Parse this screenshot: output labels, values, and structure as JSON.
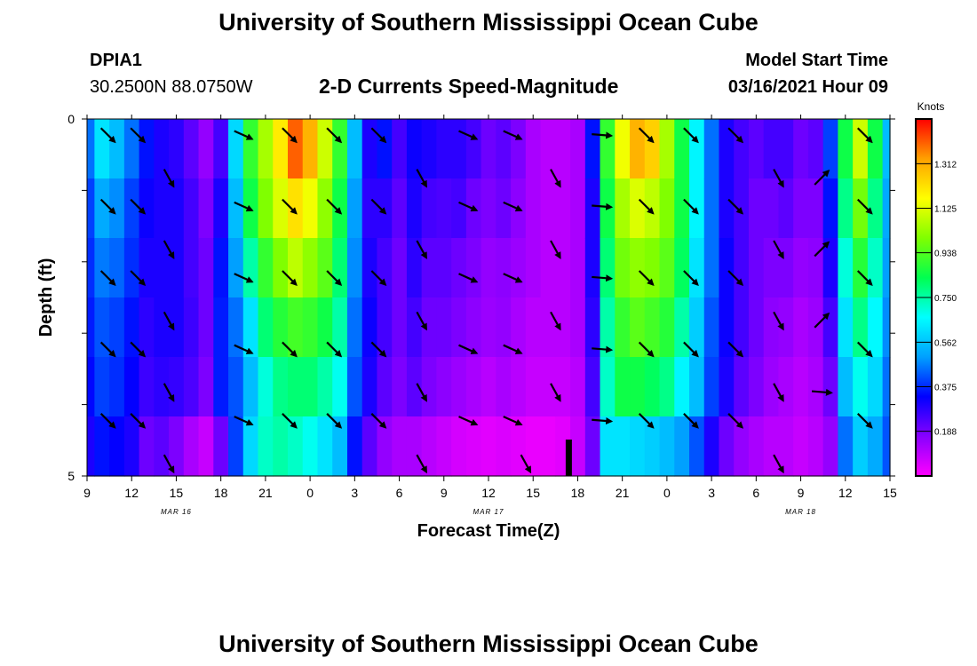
{
  "header": {
    "title": "University of Southern Mississippi Ocean Cube",
    "station_id": "DPIA1",
    "coordinates": "30.2500N 88.0750W",
    "chart_title": "2-D Currents Speed-Magnitude",
    "model_start_label": "Model Start Time",
    "model_start_value": "03/16/2021 Hour 09"
  },
  "footer": {
    "title": "University of Southern Mississippi Ocean Cube"
  },
  "chart_data": {
    "type": "heatmap",
    "title": "2-D Currents Speed-Magnitude",
    "xlabel": "Forecast Time(Z)",
    "ylabel": "Depth (ft)",
    "x_tick_labels": [
      "9",
      "12",
      "15",
      "18",
      "21",
      "0",
      "3",
      "6",
      "9",
      "12",
      "15",
      "18",
      "21",
      "0",
      "3",
      "6",
      "9",
      "12",
      "15"
    ],
    "x_hours": [
      9,
      12,
      15,
      18,
      21,
      24,
      27,
      30,
      33,
      36,
      39,
      42,
      45,
      48,
      51,
      54,
      57,
      60,
      63
    ],
    "date_labels": [
      {
        "label": "MAR 16",
        "hour": 15
      },
      {
        "label": "MAR 17",
        "hour": 36
      },
      {
        "label": "MAR 18",
        "hour": 57
      }
    ],
    "xlim": [
      9,
      63
    ],
    "ylim": [
      0,
      5
    ],
    "y_tick_labels": [
      "0",
      "5"
    ],
    "y_minor_ticks": [
      1,
      2,
      3,
      4
    ],
    "colorbar": {
      "unit": "Knots",
      "ticks": [
        1.312,
        1.125,
        0.938,
        0.75,
        0.562,
        0.375,
        0.188
      ],
      "tick_labels": [
        "1.312",
        "1.125",
        "0.938",
        "0.750",
        "0.562",
        "0.375",
        "0.188"
      ],
      "range": [
        0.0,
        1.5
      ],
      "gradient": [
        "#ff00ff",
        "#8800ff",
        "#0000ff",
        "#00a0ff",
        "#00ffff",
        "#00ff50",
        "#80ff00",
        "#ffff00",
        "#ffa000",
        "#ff0000"
      ]
    },
    "speed_columns": [
      {
        "hour": 9,
        "values": [
          0.45,
          0.4,
          0.38,
          0.36,
          0.34,
          0.3
        ]
      },
      {
        "hour": 10,
        "values": [
          0.62,
          0.52,
          0.46,
          0.42,
          0.4,
          0.35
        ]
      },
      {
        "hour": 11,
        "values": [
          0.55,
          0.48,
          0.44,
          0.4,
          0.38,
          0.33
        ]
      },
      {
        "hour": 12,
        "values": [
          0.45,
          0.4,
          0.38,
          0.35,
          0.33,
          0.3
        ]
      },
      {
        "hour": 13,
        "values": [
          0.35,
          0.32,
          0.3,
          0.28,
          0.26,
          0.2
        ]
      },
      {
        "hour": 14,
        "values": [
          0.3,
          0.3,
          0.3,
          0.3,
          0.28,
          0.22
        ]
      },
      {
        "hour": 15,
        "values": [
          0.28,
          0.3,
          0.3,
          0.3,
          0.27,
          0.18
        ]
      },
      {
        "hour": 16,
        "values": [
          0.22,
          0.25,
          0.25,
          0.26,
          0.24,
          0.12
        ]
      },
      {
        "hour": 17,
        "values": [
          0.15,
          0.18,
          0.2,
          0.2,
          0.18,
          0.08
        ]
      },
      {
        "hour": 18,
        "values": [
          0.25,
          0.3,
          0.35,
          0.36,
          0.36,
          0.2
        ]
      },
      {
        "hour": 19,
        "values": [
          0.6,
          0.55,
          0.5,
          0.45,
          0.42,
          0.4
        ]
      },
      {
        "hour": 20,
        "values": [
          0.9,
          0.85,
          0.75,
          0.62,
          0.55,
          0.6
        ]
      },
      {
        "hour": 21,
        "values": [
          1.05,
          1.0,
          0.9,
          0.8,
          0.7,
          0.72
        ]
      },
      {
        "hour": 22,
        "values": [
          1.2,
          1.12,
          1.0,
          0.88,
          0.78,
          0.75
        ]
      },
      {
        "hour": 23,
        "values": [
          1.4,
          1.22,
          1.08,
          0.92,
          0.8,
          0.72
        ]
      },
      {
        "hour": 24,
        "values": [
          1.3,
          1.15,
          1.02,
          0.9,
          0.8,
          0.68
        ]
      },
      {
        "hour": 25,
        "values": [
          1.1,
          1.02,
          0.95,
          0.85,
          0.75,
          0.62
        ]
      },
      {
        "hour": 26,
        "values": [
          0.9,
          0.85,
          0.8,
          0.75,
          0.68,
          0.55
        ]
      },
      {
        "hour": 27,
        "values": [
          0.55,
          0.5,
          0.48,
          0.45,
          0.42,
          0.35
        ]
      },
      {
        "hour": 28,
        "values": [
          0.3,
          0.28,
          0.3,
          0.32,
          0.3,
          0.22
        ]
      },
      {
        "hour": 29,
        "values": [
          0.35,
          0.28,
          0.25,
          0.25,
          0.22,
          0.15
        ]
      },
      {
        "hour": 30,
        "values": [
          0.25,
          0.22,
          0.2,
          0.2,
          0.18,
          0.12
        ]
      },
      {
        "hour": 31,
        "values": [
          0.32,
          0.3,
          0.28,
          0.25,
          0.22,
          0.12
        ]
      },
      {
        "hour": 32,
        "values": [
          0.3,
          0.25,
          0.22,
          0.2,
          0.18,
          0.1
        ]
      },
      {
        "hour": 33,
        "values": [
          0.28,
          0.24,
          0.22,
          0.2,
          0.16,
          0.08
        ]
      },
      {
        "hour": 34,
        "values": [
          0.28,
          0.25,
          0.2,
          0.18,
          0.14,
          0.06
        ]
      },
      {
        "hour": 35,
        "values": [
          0.25,
          0.2,
          0.18,
          0.16,
          0.12,
          0.05
        ]
      },
      {
        "hour": 36,
        "values": [
          0.2,
          0.18,
          0.15,
          0.14,
          0.1,
          0.04
        ]
      },
      {
        "hour": 37,
        "values": [
          0.22,
          0.2,
          0.16,
          0.15,
          0.12,
          0.05
        ]
      },
      {
        "hour": 38,
        "values": [
          0.18,
          0.16,
          0.14,
          0.12,
          0.1,
          0.04
        ]
      },
      {
        "hour": 39,
        "values": [
          0.12,
          0.12,
          0.12,
          0.1,
          0.08,
          0.03
        ]
      },
      {
        "hour": 40,
        "values": [
          0.1,
          0.1,
          0.1,
          0.1,
          0.08,
          0.03
        ]
      },
      {
        "hour": 41,
        "values": [
          0.1,
          0.1,
          0.1,
          0.1,
          0.08,
          0.04
        ]
      },
      {
        "hour": 42,
        "values": [
          0.12,
          0.12,
          0.12,
          0.12,
          0.1,
          0.08
        ]
      },
      {
        "hour": 43,
        "values": [
          0.35,
          0.3,
          0.3,
          0.28,
          0.25,
          0.2
        ]
      },
      {
        "hour": 44,
        "values": [
          0.9,
          0.85,
          0.8,
          0.75,
          0.72,
          0.62
        ]
      },
      {
        "hour": 45,
        "values": [
          1.15,
          1.05,
          0.98,
          0.9,
          0.85,
          0.62
        ]
      },
      {
        "hour": 46,
        "values": [
          1.3,
          1.12,
          1.02,
          0.95,
          0.85,
          0.6
        ]
      },
      {
        "hour": 47,
        "values": [
          1.25,
          1.08,
          1.0,
          0.92,
          0.82,
          0.58
        ]
      },
      {
        "hour": 48,
        "values": [
          1.05,
          1.0,
          0.95,
          0.88,
          0.78,
          0.55
        ]
      },
      {
        "hour": 49,
        "values": [
          0.85,
          0.85,
          0.82,
          0.75,
          0.65,
          0.5
        ]
      },
      {
        "hour": 50,
        "values": [
          0.65,
          0.65,
          0.62,
          0.58,
          0.55,
          0.42
        ]
      },
      {
        "hour": 51,
        "values": [
          0.45,
          0.45,
          0.45,
          0.42,
          0.4,
          0.3
        ]
      },
      {
        "hour": 52,
        "values": [
          0.3,
          0.3,
          0.32,
          0.32,
          0.3,
          0.2
        ]
      },
      {
        "hour": 53,
        "values": [
          0.25,
          0.25,
          0.25,
          0.25,
          0.22,
          0.15
        ]
      },
      {
        "hour": 54,
        "values": [
          0.22,
          0.2,
          0.2,
          0.2,
          0.18,
          0.12
        ]
      },
      {
        "hour": 55,
        "values": [
          0.25,
          0.2,
          0.18,
          0.16,
          0.14,
          0.1
        ]
      },
      {
        "hour": 56,
        "values": [
          0.25,
          0.22,
          0.18,
          0.15,
          0.12,
          0.1
        ]
      },
      {
        "hour": 57,
        "values": [
          0.2,
          0.18,
          0.15,
          0.12,
          0.1,
          0.08
        ]
      },
      {
        "hour": 58,
        "values": [
          0.22,
          0.18,
          0.16,
          0.14,
          0.12,
          0.1
        ]
      },
      {
        "hour": 59,
        "values": [
          0.4,
          0.35,
          0.3,
          0.25,
          0.2,
          0.15
        ]
      },
      {
        "hour": 60,
        "values": [
          0.85,
          0.78,
          0.7,
          0.62,
          0.55,
          0.45
        ]
      },
      {
        "hour": 61,
        "values": [
          1.1,
          0.98,
          0.88,
          0.78,
          0.68,
          0.58
        ]
      },
      {
        "hour": 62,
        "values": [
          0.85,
          0.78,
          0.72,
          0.66,
          0.6,
          0.52
        ]
      },
      {
        "hour": 63,
        "values": [
          0.55,
          0.52,
          0.5,
          0.48,
          0.45,
          0.42
        ]
      }
    ],
    "vector_rows_depth": [
      0.2,
      1.2,
      2.2,
      3.2,
      4.2,
      4.9
    ],
    "vectors": [
      {
        "hour": 10.4,
        "row": 0,
        "dir": "se"
      },
      {
        "hour": 12.4,
        "row": 0,
        "dir": "se"
      },
      {
        "hour": 19.5,
        "row": 0,
        "dir": "ese"
      },
      {
        "hour": 22.6,
        "row": 0,
        "dir": "se"
      },
      {
        "hour": 25.6,
        "row": 0,
        "dir": "se"
      },
      {
        "hour": 28.6,
        "row": 0,
        "dir": "se"
      },
      {
        "hour": 34.6,
        "row": 0,
        "dir": "ese"
      },
      {
        "hour": 37.6,
        "row": 0,
        "dir": "ese"
      },
      {
        "hour": 43.6,
        "row": 0,
        "dir": "e"
      },
      {
        "hour": 46.6,
        "row": 0,
        "dir": "se"
      },
      {
        "hour": 49.6,
        "row": 0,
        "dir": "se"
      },
      {
        "hour": 52.6,
        "row": 0,
        "dir": "se"
      },
      {
        "hour": 61.3,
        "row": 0,
        "dir": "se"
      },
      {
        "hour": 14.5,
        "row": 0.6,
        "dir": "sse"
      },
      {
        "hour": 31.5,
        "row": 0.6,
        "dir": "sse"
      },
      {
        "hour": 40.5,
        "row": 0.6,
        "dir": "sse"
      },
      {
        "hour": 55.5,
        "row": 0.6,
        "dir": "sse"
      },
      {
        "hour": 58.4,
        "row": 0.6,
        "dir": "ne"
      },
      {
        "hour": 10.4,
        "row": 1,
        "dir": "se"
      },
      {
        "hour": 12.4,
        "row": 1,
        "dir": "se"
      },
      {
        "hour": 19.5,
        "row": 1,
        "dir": "ese"
      },
      {
        "hour": 22.6,
        "row": 1,
        "dir": "se"
      },
      {
        "hour": 25.6,
        "row": 1,
        "dir": "se"
      },
      {
        "hour": 28.6,
        "row": 1,
        "dir": "se"
      },
      {
        "hour": 34.6,
        "row": 1,
        "dir": "ese"
      },
      {
        "hour": 37.6,
        "row": 1,
        "dir": "ese"
      },
      {
        "hour": 43.6,
        "row": 1,
        "dir": "e"
      },
      {
        "hour": 46.6,
        "row": 1,
        "dir": "se"
      },
      {
        "hour": 49.6,
        "row": 1,
        "dir": "se"
      },
      {
        "hour": 52.6,
        "row": 1,
        "dir": "se"
      },
      {
        "hour": 61.3,
        "row": 1,
        "dir": "se"
      },
      {
        "hour": 14.5,
        "row": 1.6,
        "dir": "sse"
      },
      {
        "hour": 31.5,
        "row": 1.6,
        "dir": "sse"
      },
      {
        "hour": 40.5,
        "row": 1.6,
        "dir": "sse"
      },
      {
        "hour": 55.5,
        "row": 1.6,
        "dir": "sse"
      },
      {
        "hour": 58.4,
        "row": 1.6,
        "dir": "ne"
      },
      {
        "hour": 10.4,
        "row": 2,
        "dir": "se"
      },
      {
        "hour": 12.4,
        "row": 2,
        "dir": "se"
      },
      {
        "hour": 19.5,
        "row": 2,
        "dir": "ese"
      },
      {
        "hour": 22.6,
        "row": 2,
        "dir": "se"
      },
      {
        "hour": 25.6,
        "row": 2,
        "dir": "se"
      },
      {
        "hour": 28.6,
        "row": 2,
        "dir": "se"
      },
      {
        "hour": 34.6,
        "row": 2,
        "dir": "ese"
      },
      {
        "hour": 37.6,
        "row": 2,
        "dir": "ese"
      },
      {
        "hour": 43.6,
        "row": 2,
        "dir": "e"
      },
      {
        "hour": 46.6,
        "row": 2,
        "dir": "se"
      },
      {
        "hour": 49.6,
        "row": 2,
        "dir": "se"
      },
      {
        "hour": 52.6,
        "row": 2,
        "dir": "se"
      },
      {
        "hour": 61.3,
        "row": 2,
        "dir": "se"
      },
      {
        "hour": 14.5,
        "row": 2.6,
        "dir": "sse"
      },
      {
        "hour": 31.5,
        "row": 2.6,
        "dir": "sse"
      },
      {
        "hour": 40.5,
        "row": 2.6,
        "dir": "sse"
      },
      {
        "hour": 55.5,
        "row": 2.6,
        "dir": "sse"
      },
      {
        "hour": 58.4,
        "row": 2.6,
        "dir": "ne"
      },
      {
        "hour": 10.4,
        "row": 3,
        "dir": "se"
      },
      {
        "hour": 12.4,
        "row": 3,
        "dir": "se"
      },
      {
        "hour": 19.5,
        "row": 3,
        "dir": "ese"
      },
      {
        "hour": 22.6,
        "row": 3,
        "dir": "se"
      },
      {
        "hour": 25.6,
        "row": 3,
        "dir": "se"
      },
      {
        "hour": 28.6,
        "row": 3,
        "dir": "se"
      },
      {
        "hour": 34.6,
        "row": 3,
        "dir": "ese"
      },
      {
        "hour": 37.6,
        "row": 3,
        "dir": "ese"
      },
      {
        "hour": 43.6,
        "row": 3,
        "dir": "e"
      },
      {
        "hour": 46.6,
        "row": 3,
        "dir": "se"
      },
      {
        "hour": 49.6,
        "row": 3,
        "dir": "se"
      },
      {
        "hour": 52.6,
        "row": 3,
        "dir": "se"
      },
      {
        "hour": 61.3,
        "row": 3,
        "dir": "se"
      },
      {
        "hour": 14.5,
        "row": 3.6,
        "dir": "sse"
      },
      {
        "hour": 31.5,
        "row": 3.6,
        "dir": "sse"
      },
      {
        "hour": 40.5,
        "row": 3.6,
        "dir": "sse"
      },
      {
        "hour": 55.5,
        "row": 3.6,
        "dir": "sse"
      },
      {
        "hour": 58.4,
        "row": 3.6,
        "dir": "e"
      },
      {
        "hour": 10.4,
        "row": 4,
        "dir": "se"
      },
      {
        "hour": 12.4,
        "row": 4,
        "dir": "se"
      },
      {
        "hour": 19.5,
        "row": 4,
        "dir": "ese"
      },
      {
        "hour": 22.6,
        "row": 4,
        "dir": "se"
      },
      {
        "hour": 25.6,
        "row": 4,
        "dir": "se"
      },
      {
        "hour": 28.6,
        "row": 4,
        "dir": "se"
      },
      {
        "hour": 34.6,
        "row": 4,
        "dir": "ese"
      },
      {
        "hour": 37.6,
        "row": 4,
        "dir": "ese"
      },
      {
        "hour": 43.6,
        "row": 4,
        "dir": "e"
      },
      {
        "hour": 46.6,
        "row": 4,
        "dir": "se"
      },
      {
        "hour": 49.6,
        "row": 4,
        "dir": "se"
      },
      {
        "hour": 52.6,
        "row": 4,
        "dir": "se"
      },
      {
        "hour": 61.3,
        "row": 4,
        "dir": "se"
      },
      {
        "hour": 14.5,
        "row": 4.6,
        "dir": "sse"
      },
      {
        "hour": 31.5,
        "row": 4.6,
        "dir": "sse"
      },
      {
        "hour": 38.5,
        "row": 4.6,
        "dir": "sse"
      },
      {
        "hour": 55.5,
        "row": 4.6,
        "dir": "sse"
      }
    ],
    "current_time_marker_hour": 41.4,
    "grid": false,
    "legend": "right"
  }
}
